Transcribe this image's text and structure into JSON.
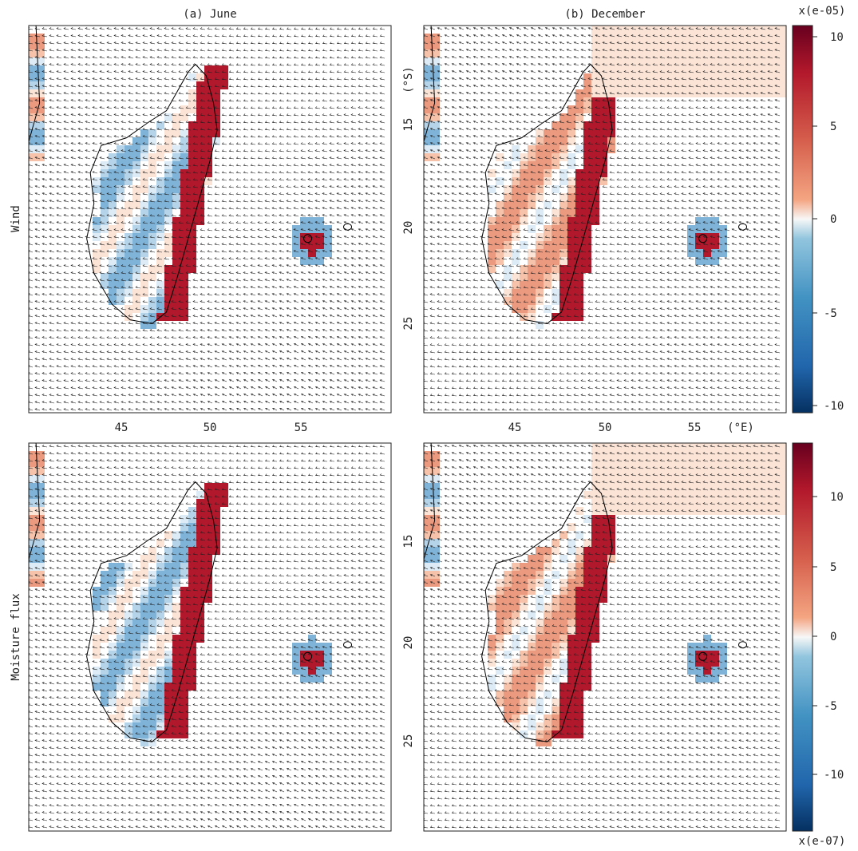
{
  "titles": {
    "a": "(a) June",
    "b": "(b) December"
  },
  "row_labels": {
    "top": "Wind",
    "bottom": "Moisture flux"
  },
  "lon_ticks": [
    "45",
    "50",
    "55"
  ],
  "lon_unit": "(°E)",
  "lat_ticks": [
    "15",
    "20",
    "25"
  ],
  "lat_unit": "(°S)",
  "colorbar_top": {
    "scale_label": "x(e-05)",
    "ticks": [
      "10",
      "5",
      "0",
      "-5",
      "-10"
    ]
  },
  "colorbar_bottom": {
    "scale_label": "x(e-07)",
    "ticks": [
      "10",
      "5",
      "0",
      "-5",
      "-10"
    ]
  },
  "colors": {
    "max": "#67001f",
    "pos": "#d6604d",
    "zero": "#f7f7f7",
    "neg": "#4393c3",
    "min": "#053061",
    "coast": "#000000",
    "arrow": "#222222"
  }
}
